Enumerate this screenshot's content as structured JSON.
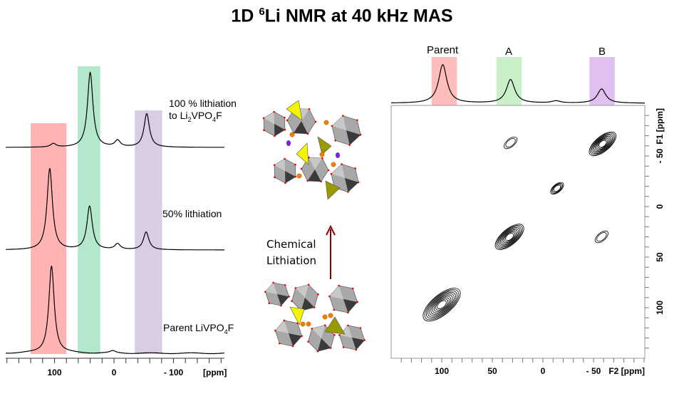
{
  "title": {
    "prefix": "1D ",
    "sup": "6",
    "main": "Li NMR at 40 kHz MAS"
  },
  "colors": {
    "parent_band": "#ffb3b3",
    "A_band": "#b3e8cc",
    "B_band": "#d8cde3",
    "top_parent_band": "#ffbcbc",
    "top_A_band": "#c9f0c9",
    "top_B_band": "#e0c0f0",
    "arrow": "#8b0000",
    "trace": "#000000"
  },
  "structure_labels": {
    "line1": "Chemical",
    "line2": "Lithiation"
  },
  "chart_data": [
    {
      "type": "line",
      "description_axis": "1D spectra stacked",
      "xlabel": "[ppm]",
      "xlim": [
        182,
        -186
      ],
      "xticks": [
        100,
        0,
        -100
      ],
      "xtick_labels": [
        "100",
        "0",
        "- 100"
      ],
      "bands_ppm": [
        [
          140,
          80
        ],
        [
          61,
          23
        ],
        [
          -35,
          -81
        ]
      ],
      "series": [
        {
          "name": "100 % lithiation to Li2VPO4F",
          "label_line1": "100 % lithiation",
          "label_line2_pre": "to Li",
          "label_sub1": "2",
          "label_mid": "VPO",
          "label_sub2": "4",
          "label_post": "F",
          "peaks": [
            {
              "ppm": 40,
              "height": 105
            },
            {
              "ppm": -55,
              "height": 47
            },
            {
              "ppm": -6,
              "height": 9
            },
            {
              "ppm": 102,
              "height": 5
            }
          ]
        },
        {
          "name": "50% lithiation",
          "label": "50% lithiation",
          "peaks": [
            {
              "ppm": 108,
              "height": 114
            },
            {
              "ppm": 41,
              "height": 61
            },
            {
              "ppm": -54,
              "height": 25
            },
            {
              "ppm": -6,
              "height": 8
            }
          ]
        },
        {
          "name": "Parent LiVPO4F",
          "label_pre": "Parent LiVPO",
          "label_sub": "4",
          "label_post": "F",
          "peaks": [
            {
              "ppm": 105,
              "height": 123
            },
            {
              "ppm": 2,
              "height": 3
            }
          ]
        }
      ]
    },
    {
      "type": "contour",
      "xlabel": "F2 [ppm]",
      "ylabel": "F1 [ppm]",
      "xlim": [
        150,
        -100
      ],
      "ylim": [
        -100,
        150
      ],
      "xticks": [
        100,
        50,
        0,
        -50
      ],
      "xtick_labels": [
        "100",
        "50",
        "0",
        "- 50"
      ],
      "yticks": [
        -50,
        0,
        50,
        100
      ],
      "ytick_labels": [
        "- 50",
        "0",
        "50",
        "100"
      ],
      "projection_labels": [
        "Parent",
        "A",
        "B"
      ],
      "projection_peaks": [
        {
          "ppm": 99,
          "height": 54
        },
        {
          "ppm": 32,
          "height": 33
        },
        {
          "ppm": -58,
          "height": 20
        },
        {
          "ppm": -13,
          "height": 3
        }
      ],
      "projection_bands_ppm": [
        [
          110,
          85
        ],
        [
          46,
          21
        ],
        [
          -46,
          -71
        ]
      ],
      "cross_peaks": [
        {
          "f2": 100,
          "f1": 97,
          "levels": 10,
          "size": 1.0
        },
        {
          "f2": 33,
          "f1": 30,
          "levels": 9,
          "size": 0.75
        },
        {
          "f2": -59,
          "f1": -62,
          "levels": 9,
          "size": 0.7
        },
        {
          "f2": 32,
          "f1": -63,
          "levels": 2,
          "size": 0.3
        },
        {
          "f2": -58,
          "f1": 30,
          "levels": 2,
          "size": 0.3
        },
        {
          "f2": -14,
          "f1": -18,
          "levels": 4,
          "size": 0.3
        }
      ]
    }
  ]
}
